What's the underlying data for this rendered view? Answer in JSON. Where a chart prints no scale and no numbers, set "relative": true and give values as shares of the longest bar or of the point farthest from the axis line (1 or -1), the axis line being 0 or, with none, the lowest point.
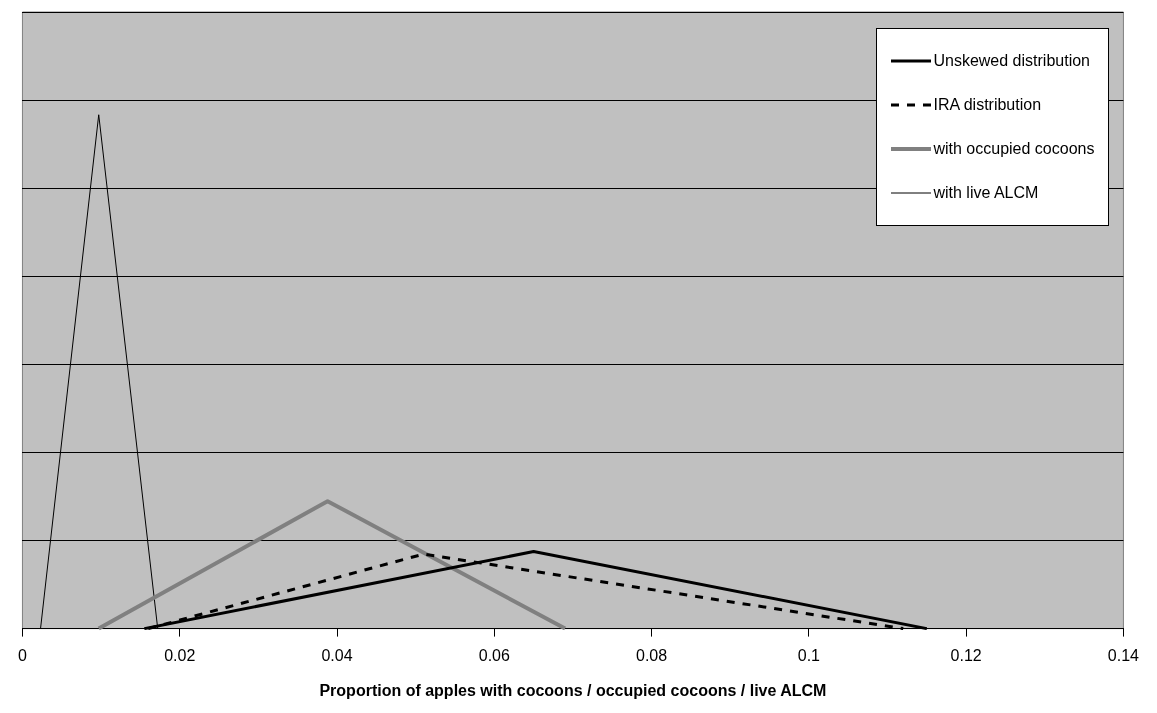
{
  "chart_data": {
    "type": "line",
    "xlabel": "Proportion of apples with cocoons / occupied cocoons / live ALCM",
    "relative": true,
    "xlim": [
      0,
      0.14
    ],
    "xticks": [
      0,
      0.02,
      0.04,
      0.06,
      0.08,
      0.1,
      0.12,
      0.14
    ],
    "grid": "y",
    "legend": "top right",
    "marker": "none",
    "series": [
      {
        "name": "Unskewed distribution",
        "color": "#000000",
        "line_style": "solid",
        "x": [
          0.0155,
          0.065,
          0.115
        ],
        "values": [
          0,
          0.15,
          0
        ]
      },
      {
        "name": "IRA distribution",
        "color": "#000000",
        "line_style": "dashed",
        "x": [
          0.016,
          0.051,
          0.112
        ],
        "values": [
          0,
          0.145,
          0
        ]
      },
      {
        "name": "with occupied cocoons",
        "color": "#808080",
        "line_style": "solid",
        "x": [
          0.0097,
          0.0388,
          0.069
        ],
        "values": [
          0,
          0.248,
          0
        ]
      },
      {
        "name": "with live ALCM",
        "color": "#000000",
        "line_style": "solid",
        "x": [
          0.0023,
          0.0097,
          0.0172
        ],
        "values": [
          0,
          1,
          0
        ]
      }
    ]
  }
}
